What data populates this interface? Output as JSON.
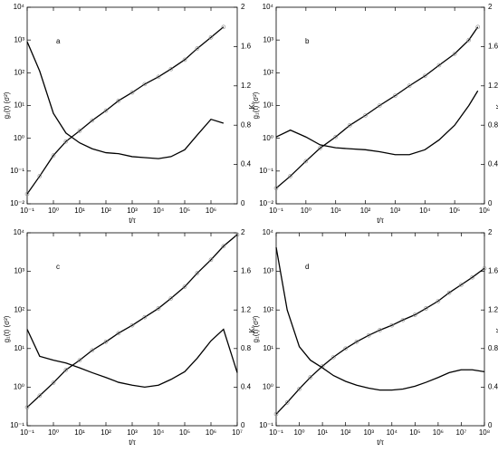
{
  "chart_data": [
    {
      "type": "line",
      "label": "a",
      "xlabel": "t/τ",
      "ylabel": "g₁(t) (σ²)",
      "y2label": "Kₜ",
      "log_x": true,
      "log_y": true,
      "x": [
        0.1,
        0.3,
        1,
        3,
        10,
        30,
        100,
        300,
        1000,
        3000,
        10000,
        30000,
        100000,
        300000,
        1000000,
        3000000
      ],
      "xlim": [
        0.1,
        10000000
      ],
      "xticks": [
        {
          "value": 0.1,
          "label": "10⁻¹"
        },
        {
          "value": 1,
          "label": "10⁰"
        },
        {
          "value": 10,
          "label": "10¹"
        },
        {
          "value": 100,
          "label": "10²"
        },
        {
          "value": 1000,
          "label": "10³"
        },
        {
          "value": 10000,
          "label": "10⁴"
        },
        {
          "value": 100000,
          "label": "10⁵"
        },
        {
          "value": 1000000,
          "label": "10⁶"
        }
      ],
      "ylim": [
        0.01,
        10000
      ],
      "yticks": [
        {
          "value": 0.01,
          "label": "10⁻²"
        },
        {
          "value": 0.1,
          "label": "10⁻¹"
        },
        {
          "value": 1,
          "label": "10⁰"
        },
        {
          "value": 10,
          "label": "10¹"
        },
        {
          "value": 100,
          "label": "10²"
        },
        {
          "value": 1000,
          "label": "10³"
        },
        {
          "value": 10000,
          "label": "10⁴"
        }
      ],
      "y2lim": [
        0,
        2
      ],
      "y2ticks": [
        0,
        0.4,
        0.8,
        1.2,
        1.6,
        2
      ],
      "series": [
        {
          "color": "#000000",
          "marker": "circle",
          "values": [
            0.02,
            0.07,
            0.3,
            0.8,
            1.7,
            3.5,
            7,
            14,
            25,
            45,
            75,
            130,
            250,
            550,
            1200,
            2500
          ]
        },
        {
          "color": "#000000",
          "axis": "y2",
          "values": [
            1.65,
            1.35,
            0.92,
            0.72,
            0.62,
            0.56,
            0.52,
            0.51,
            0.48,
            0.47,
            0.46,
            0.48,
            0.55,
            0.7,
            0.86,
            0.82
          ]
        }
      ]
    },
    {
      "type": "line",
      "label": "b",
      "xlabel": "t/τ",
      "ylabel": "g₁(t) (σ²)",
      "y2label": "Kₜ",
      "log_x": true,
      "log_y": true,
      "x": [
        0.1,
        0.3,
        1,
        3,
        10,
        30,
        100,
        300,
        1000,
        3000,
        10000,
        30000,
        100000,
        300000,
        600000
      ],
      "xlim": [
        0.1,
        1000000
      ],
      "xticks": [
        {
          "value": 0.1,
          "label": "10⁻¹"
        },
        {
          "value": 1,
          "label": "10⁰"
        },
        {
          "value": 10,
          "label": "10¹"
        },
        {
          "value": 100,
          "label": "10²"
        },
        {
          "value": 1000,
          "label": "10³"
        },
        {
          "value": 10000,
          "label": "10⁴"
        },
        {
          "value": 100000,
          "label": "10⁵"
        },
        {
          "value": 1000000,
          "label": "10⁶"
        }
      ],
      "ylim": [
        0.01,
        10000
      ],
      "yticks": [
        {
          "value": 0.01,
          "label": "10⁻²"
        },
        {
          "value": 0.1,
          "label": "10⁻¹"
        },
        {
          "value": 1,
          "label": "10⁰"
        },
        {
          "value": 10,
          "label": "10¹"
        },
        {
          "value": 100,
          "label": "10²"
        },
        {
          "value": 1000,
          "label": "10³"
        },
        {
          "value": 10000,
          "label": "10⁴"
        }
      ],
      "y2lim": [
        0,
        2
      ],
      "y2ticks": [
        0,
        0.4,
        0.8,
        1.2,
        1.6,
        2
      ],
      "series": [
        {
          "color": "#000000",
          "marker": "circle",
          "values": [
            0.03,
            0.07,
            0.2,
            0.5,
            1.1,
            2.5,
            5,
            10,
            20,
            40,
            80,
            170,
            380,
            1000,
            2500
          ]
        },
        {
          "color": "#000000",
          "axis": "y2",
          "values": [
            0.68,
            0.75,
            0.68,
            0.6,
            0.57,
            0.56,
            0.55,
            0.53,
            0.5,
            0.5,
            0.55,
            0.65,
            0.8,
            1.0,
            1.15
          ]
        }
      ]
    },
    {
      "type": "line",
      "label": "c",
      "xlabel": "t/τ",
      "ylabel": "g₁(t) (σ²)",
      "y2label": "Kₜ",
      "log_x": true,
      "log_y": true,
      "x": [
        0.1,
        0.3,
        1,
        3,
        10,
        30,
        100,
        300,
        1000,
        3000,
        10000,
        30000,
        100000,
        300000,
        1000000,
        3000000,
        10000000
      ],
      "xlim": [
        0.1,
        10000000
      ],
      "xticks": [
        {
          "value": 0.1,
          "label": "10⁻¹"
        },
        {
          "value": 1,
          "label": "10⁰"
        },
        {
          "value": 10,
          "label": "10¹"
        },
        {
          "value": 100,
          "label": "10²"
        },
        {
          "value": 1000,
          "label": "10³"
        },
        {
          "value": 10000,
          "label": "10⁴"
        },
        {
          "value": 100000,
          "label": "10⁵"
        },
        {
          "value": 1000000,
          "label": "10⁶"
        },
        {
          "value": 10000000,
          "label": "10⁷"
        }
      ],
      "ylim": [
        0.1,
        10000
      ],
      "yticks": [
        {
          "value": 0.1,
          "label": "10⁻¹"
        },
        {
          "value": 1,
          "label": "10⁰"
        },
        {
          "value": 10,
          "label": "10¹"
        },
        {
          "value": 100,
          "label": "10²"
        },
        {
          "value": 1000,
          "label": "10³"
        },
        {
          "value": 10000,
          "label": "10⁴"
        }
      ],
      "y2lim": [
        0,
        2
      ],
      "y2ticks": [
        0,
        0.4,
        0.8,
        1.2,
        1.6,
        2
      ],
      "series": [
        {
          "color": "#000000",
          "marker": "circle",
          "values": [
            0.3,
            0.6,
            1.3,
            2.8,
            5,
            9,
            15,
            25,
            40,
            65,
            110,
            200,
            400,
            900,
            2000,
            4500,
            9000
          ]
        },
        {
          "color": "#000000",
          "axis": "y2",
          "values": [
            1.0,
            0.72,
            0.68,
            0.65,
            0.6,
            0.55,
            0.5,
            0.45,
            0.42,
            0.4,
            0.42,
            0.48,
            0.56,
            0.7,
            0.88,
            1.0,
            0.55
          ]
        }
      ]
    },
    {
      "type": "line",
      "label": "d",
      "xlabel": "t/τ",
      "ylabel": "g₁(t) (σ²)",
      "y2label": "Kₜ",
      "log_x": true,
      "log_y": true,
      "x": [
        0.1,
        0.3,
        1,
        3,
        10,
        30,
        100,
        300,
        1000,
        3000,
        10000,
        30000,
        100000,
        300000,
        1000000,
        3000000,
        10000000,
        30000000,
        100000000
      ],
      "xlim": [
        0.1,
        100000000
      ],
      "xticks": [
        {
          "value": 0.1,
          "label": "10⁻¹"
        },
        {
          "value": 1,
          "label": "10⁰"
        },
        {
          "value": 10,
          "label": "10¹"
        },
        {
          "value": 100,
          "label": "10²"
        },
        {
          "value": 1000,
          "label": "10³"
        },
        {
          "value": 10000,
          "label": "10⁴"
        },
        {
          "value": 100000,
          "label": "10⁵"
        },
        {
          "value": 1000000,
          "label": "10⁶"
        },
        {
          "value": 10000000,
          "label": "10⁷"
        },
        {
          "value": 100000000,
          "label": "10⁸"
        }
      ],
      "ylim": [
        0.1,
        10000
      ],
      "yticks": [
        {
          "value": 0.1,
          "label": "10⁻¹"
        },
        {
          "value": 1,
          "label": "10⁰"
        },
        {
          "value": 10,
          "label": "10¹"
        },
        {
          "value": 100,
          "label": "10²"
        },
        {
          "value": 1000,
          "label": "10³"
        },
        {
          "value": 10000,
          "label": "10⁴"
        }
      ],
      "y2lim": [
        0,
        2
      ],
      "y2ticks": [
        0,
        0.4,
        0.8,
        1.2,
        1.6,
        2
      ],
      "series": [
        {
          "color": "#000000",
          "marker": "circle",
          "values": [
            0.2,
            0.4,
            0.9,
            1.8,
            3.5,
            6,
            10,
            15,
            22,
            30,
            40,
            55,
            75,
            110,
            170,
            280,
            450,
            700,
            1200
          ]
        },
        {
          "color": "#000000",
          "axis": "y2",
          "values": [
            1.85,
            1.2,
            0.82,
            0.68,
            0.6,
            0.52,
            0.46,
            0.42,
            0.39,
            0.37,
            0.37,
            0.38,
            0.41,
            0.45,
            0.5,
            0.55,
            0.58,
            0.58,
            0.56
          ]
        }
      ]
    }
  ]
}
